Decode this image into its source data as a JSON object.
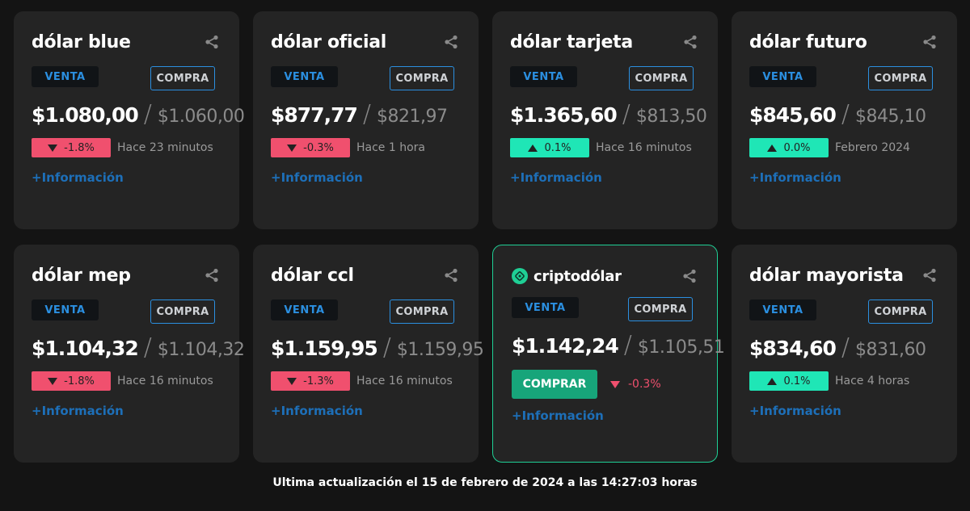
{
  "cards": [
    {
      "title": "dólar blue",
      "venta_label": "VENTA",
      "compra_label": "COMPRA",
      "price_venta": "$1.080,00",
      "price_compra": "$1.060,00",
      "change": "-1.8%",
      "direction": "down",
      "time": "Hace 23 minutos",
      "info": "+Información"
    },
    {
      "title": "dólar oficial",
      "venta_label": "VENTA",
      "compra_label": "COMPRA",
      "price_venta": "$877,77",
      "price_compra": "$821,97",
      "change": "-0.3%",
      "direction": "down",
      "time": "Hace 1 hora",
      "info": "+Información"
    },
    {
      "title": "dólar tarjeta",
      "venta_label": "VENTA",
      "compra_label": "COMPRA",
      "price_venta": "$1.365,60",
      "price_compra": "$813,50",
      "change": "0.1%",
      "direction": "up",
      "time": "Hace 16 minutos",
      "info": "+Información"
    },
    {
      "title": "dólar futuro",
      "venta_label": "VENTA",
      "compra_label": "COMPRA",
      "price_venta": "$845,60",
      "price_compra": "$845,10",
      "change": "0.0%",
      "direction": "up",
      "time": "Febrero 2024",
      "info": "+Información"
    },
    {
      "title": "dólar mep",
      "venta_label": "VENTA",
      "compra_label": "COMPRA",
      "price_venta": "$1.104,32",
      "price_compra": "$1.104,32",
      "change": "-1.8%",
      "direction": "down",
      "time": "Hace 16 minutos",
      "info": "+Información"
    },
    {
      "title": "dólar ccl",
      "venta_label": "VENTA",
      "compra_label": "COMPRA",
      "price_venta": "$1.159,95",
      "price_compra": "$1.159,95",
      "change": "-1.3%",
      "direction": "down",
      "time": "Hace 16 minutos",
      "info": "+Información"
    },
    {
      "title": "criptodólar",
      "venta_label": "VENTA",
      "compra_label": "COMPRA",
      "price_venta": "$1.142,24",
      "price_compra": "$1.105,51",
      "buy_button": "COMPRAR",
      "change": "-0.3%",
      "direction": "down",
      "info": "+Información"
    },
    {
      "title": "dólar mayorista",
      "venta_label": "VENTA",
      "compra_label": "COMPRA",
      "price_venta": "$834,60",
      "price_compra": "$831,60",
      "change": "0.1%",
      "direction": "up",
      "time": "Hace 4 horas",
      "info": "+Información"
    }
  ],
  "footer": "Ultima actualización el 15 de febrero de 2024 a las 14:27:03 horas",
  "colors": {
    "accent_blue": "#2b8fe0",
    "down": "#f0506e",
    "up": "#1fe6b6",
    "crypto_green": "#17a57a"
  },
  "icons": {
    "share": "share-icon",
    "crypto_logo": "crypto-logo-icon"
  }
}
